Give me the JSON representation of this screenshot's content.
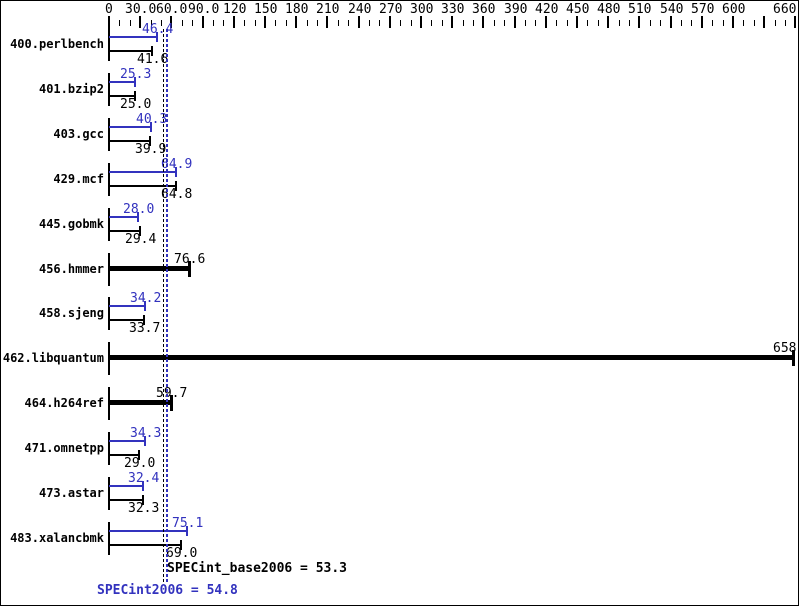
{
  "chart_data": {
    "type": "bar",
    "orientation": "horizontal",
    "description": "SPEC CPU2006 integer benchmark result graph: one row per benchmark, blue bar = peak ratio, black bar = base ratio, single thick bar where base and peak are equal; dotted vertical lines mark the overall SPECint scores",
    "axis": {
      "min": 0,
      "max": 660,
      "major_step": 30,
      "minor_step": 10,
      "tick_labels": [
        {
          "v": 0,
          "text": "0"
        },
        {
          "v": 30,
          "text": "30.0"
        },
        {
          "v": 60,
          "text": "60.0"
        },
        {
          "v": 90,
          "text": "90.0"
        },
        {
          "v": 120,
          "text": "120"
        },
        {
          "v": 150,
          "text": "150"
        },
        {
          "v": 180,
          "text": "180"
        },
        {
          "v": 210,
          "text": "210"
        },
        {
          "v": 240,
          "text": "240"
        },
        {
          "v": 270,
          "text": "270"
        },
        {
          "v": 300,
          "text": "300"
        },
        {
          "v": 330,
          "text": "330"
        },
        {
          "v": 360,
          "text": "360"
        },
        {
          "v": 390,
          "text": "390"
        },
        {
          "v": 420,
          "text": "420"
        },
        {
          "v": 450,
          "text": "450"
        },
        {
          "v": 480,
          "text": "480"
        },
        {
          "v": 510,
          "text": "510"
        },
        {
          "v": 540,
          "text": "540"
        },
        {
          "v": 570,
          "text": "570"
        },
        {
          "v": 600,
          "text": "600"
        },
        {
          "v": 660,
          "text": "660"
        }
      ]
    },
    "series": [
      {
        "name": "peak",
        "color": "#3232be"
      },
      {
        "name": "base",
        "color": "#000000"
      }
    ],
    "benchmarks": [
      {
        "name": "400.perlbench",
        "peak": 46.4,
        "base": 41.6,
        "peak_label": "46.4",
        "base_label": "41.6"
      },
      {
        "name": "401.bzip2",
        "peak": 25.3,
        "base": 25.0,
        "peak_label": "25.3",
        "base_label": "25.0"
      },
      {
        "name": "403.gcc",
        "peak": 40.3,
        "base": 39.9,
        "peak_label": "40.3",
        "base_label": "39.9"
      },
      {
        "name": "429.mcf",
        "peak": 64.9,
        "base": 64.8,
        "peak_label": "64.9",
        "base_label": "64.8"
      },
      {
        "name": "445.gobmk",
        "peak": 28.0,
        "base": 29.4,
        "peak_label": "28.0",
        "base_label": "29.4"
      },
      {
        "name": "456.hmmer",
        "merged": 76.6,
        "merged_label": "76.6"
      },
      {
        "name": "458.sjeng",
        "peak": 34.2,
        "base": 33.7,
        "peak_label": "34.2",
        "base_label": "33.7"
      },
      {
        "name": "462.libquantum",
        "merged": 658,
        "merged_label": "658"
      },
      {
        "name": "464.h264ref",
        "merged": 59.7,
        "merged_label": "59.7"
      },
      {
        "name": "471.omnetpp",
        "peak": 34.3,
        "base": 29.0,
        "peak_label": "34.3",
        "base_label": "29.0"
      },
      {
        "name": "473.astar",
        "peak": 32.4,
        "base": 32.3,
        "peak_label": "32.4",
        "base_label": "32.3"
      },
      {
        "name": "483.xalancbmk",
        "peak": 75.1,
        "base": 69.0,
        "peak_label": "75.1",
        "base_label": "69.0"
      }
    ],
    "reference_lines": [
      {
        "name": "SPECint_base2006",
        "value": 53.3,
        "color": "#000000"
      },
      {
        "name": "SPECint2006",
        "value": 54.8,
        "color": "#3232be"
      }
    ]
  },
  "summary": {
    "base_text": "SPECint_base2006 = 53.3",
    "peak_text": "SPECint2006 = 54.8"
  },
  "colors": {
    "peak_blue": "#3232be",
    "base_black": "#000000",
    "background": "#ffffff",
    "border": "#000000"
  }
}
